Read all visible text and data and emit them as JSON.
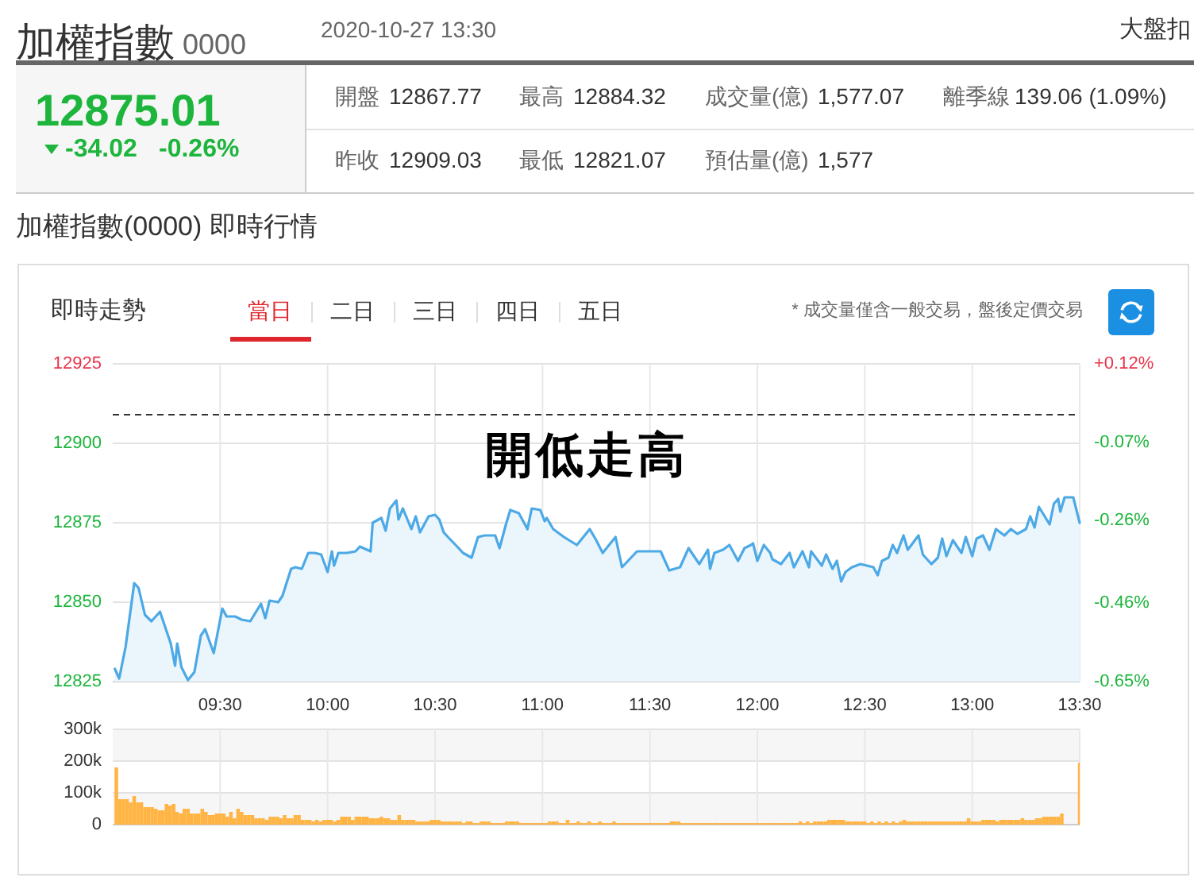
{
  "chart_data": [
    {
      "type": "other",
      "title": "加權指數",
      "subtitle": "0000",
      "annotations": [
        "2020-10-27 13:30",
        "大盤扣",
        "12875.01",
        "-34.02",
        "-0.26%",
        "開盤",
        "12867.77",
        "最高",
        "12884.32",
        "成交量(億)",
        "1,577.07",
        "離季線",
        "139.06 (1.09%)",
        "昨收",
        "12909.03",
        "最低",
        "12821.07",
        "預估量(億)",
        "1,577",
        "加權指數(0000) 即時行情",
        "即時走勢",
        "當日",
        "二日",
        "三日",
        "四日",
        "五日",
        "* 成交量僅含一般交易，盤後定價交易"
      ]
    },
    {
      "type": "area",
      "color": "#4ca9e6",
      "grid": true,
      "x": [
        9.01,
        9.03,
        9.06,
        9.1,
        9.12,
        9.15,
        9.18,
        9.22,
        9.27,
        9.29,
        9.3,
        9.32,
        9.35,
        9.38,
        9.41,
        9.43,
        9.47,
        9.51,
        9.53,
        9.57,
        9.6,
        9.64,
        9.69,
        9.71,
        9.73,
        9.77,
        9.79,
        9.83,
        9.85,
        9.88,
        9.91,
        9.94,
        9.97,
        10,
        10.02,
        10.03,
        10.05,
        10.09,
        10.13,
        10.15,
        10.2,
        10.21,
        10.25,
        10.27,
        10.29,
        10.32,
        10.33,
        10.35,
        10.39,
        10.41,
        10.43,
        10.47,
        10.5,
        10.52,
        10.54,
        10.56,
        10.61,
        10.63,
        10.67,
        10.7,
        10.73,
        10.78,
        10.8,
        10.83,
        10.85,
        10.89,
        10.93,
        10.95,
        10.99,
        11.01,
        11.02,
        11.05,
        11.1,
        11.16,
        11.22,
        11.25,
        11.28,
        11.34,
        11.37,
        11.44,
        11.49,
        11.55,
        11.59,
        11.64,
        11.68,
        11.73,
        11.77,
        11.78,
        11.8,
        11.84,
        11.87,
        11.91,
        11.94,
        11.97,
        11.98,
        12,
        12.03,
        12.06,
        12.07,
        12.11,
        12.15,
        12.17,
        12.21,
        12.24,
        12.25,
        12.3,
        12.32,
        12.35,
        12.37,
        12.39,
        12.41,
        12.44,
        12.48,
        12.54,
        12.56,
        12.58,
        12.61,
        12.63,
        12.65,
        12.68,
        12.7,
        12.75,
        12.77,
        12.81,
        12.84,
        12.86,
        12.88,
        12.91,
        12.95,
        12.97,
        13,
        13.02,
        13.05,
        13.08,
        13.11,
        13.15,
        13.18,
        13.21,
        13.25,
        13.27,
        13.29,
        13.31,
        13.36,
        13.38,
        13.4,
        13.41,
        13.43,
        13.47,
        13.5
      ],
      "values": [
        12829,
        12826,
        12836,
        12856,
        12854.5,
        12846,
        12844,
        12847,
        12837,
        12830,
        12837,
        12829.5,
        12825.5,
        12828,
        12839.5,
        12841.5,
        12834,
        12848,
        12845.5,
        12845.5,
        12844.5,
        12844,
        12849.5,
        12845,
        12850.5,
        12850,
        12852,
        12860.5,
        12861,
        12860.5,
        12865.5,
        12865.5,
        12865,
        12859.5,
        12866,
        12861.5,
        12865.5,
        12865.5,
        12866,
        12867.5,
        12866,
        12875,
        12876.5,
        12872.5,
        12879.5,
        12882,
        12876,
        12879.5,
        12873,
        12877,
        12872,
        12877,
        12877.5,
        12876,
        12872,
        12870.5,
        12867,
        12865.5,
        12864,
        12870.5,
        12871,
        12871,
        12867,
        12874.5,
        12879,
        12878,
        12873,
        12879.5,
        12879,
        12875.5,
        12876.5,
        12873,
        12870.5,
        12868,
        12873,
        12869.5,
        12865.5,
        12870.5,
        12861,
        12866,
        12866,
        12866,
        12860,
        12861,
        12867,
        12862,
        12866.5,
        12860.5,
        12865.5,
        12866.5,
        12868,
        12863,
        12867,
        12868,
        12868.5,
        12863,
        12868,
        12865.5,
        12863.5,
        12862,
        12865.5,
        12861,
        12866,
        12861,
        12866,
        12861.5,
        12865,
        12860.5,
        12863,
        12856.5,
        12859.5,
        12861,
        12862,
        12861,
        12858.5,
        12863,
        12864,
        12868,
        12865.5,
        12871,
        12866.5,
        12871,
        12865,
        12862,
        12864,
        12870,
        12864.5,
        12869.5,
        12865.5,
        12870.5,
        12864.5,
        12870,
        12871,
        12866.5,
        12873,
        12871,
        12873,
        12871.5,
        12873,
        12877,
        12873.5,
        12880,
        12874.5,
        12881,
        12882.5,
        12878.5,
        12883,
        12883,
        12875
      ],
      "xlim": [
        9,
        13.5
      ],
      "xticks": [
        {
          "value": 9.5,
          "label": "09:30"
        },
        {
          "value": 10,
          "label": "10:00"
        },
        {
          "value": 10.5,
          "label": "10:30"
        },
        {
          "value": 11,
          "label": "11:00"
        },
        {
          "value": 11.5,
          "label": "11:30"
        },
        {
          "value": 12,
          "label": "12:00"
        },
        {
          "value": 12.5,
          "label": "12:30"
        },
        {
          "value": 13,
          "label": "13:00"
        },
        {
          "value": 13.5,
          "label": "13:30"
        }
      ],
      "ylim": [
        12825,
        12925
      ],
      "yticks": [
        12825,
        12850,
        12875,
        12900,
        12925
      ],
      "y2lim": [
        -0.65,
        0.12
      ],
      "y2ticks": [
        {
          "value": -0.65,
          "label": "-0.65%"
        },
        {
          "value": -0.46,
          "label": "-0.46%"
        },
        {
          "value": -0.26,
          "label": "-0.26%"
        },
        {
          "value": -0.07,
          "label": "-0.07%"
        },
        {
          "value": 0.12,
          "label": "+0.12%"
        }
      ],
      "ref_lines": [
        {
          "axis": "y",
          "value": 12909.03,
          "color": "#333333",
          "line_style": "dashed"
        }
      ],
      "annotations": [
        "開低走高"
      ]
    },
    {
      "type": "bar",
      "color": "#ffb443",
      "grid": true,
      "tick_labels": "y",
      "x": [
        9.0167,
        9.0333,
        9.05,
        9.0667,
        9.0833,
        9.1,
        9.1167,
        9.1333,
        9.15,
        9.1667,
        9.1833,
        9.2,
        9.2167,
        9.2333,
        9.25,
        9.2667,
        9.2833,
        9.3,
        9.3167,
        9.3333,
        9.35,
        9.3667,
        9.3833,
        9.4,
        9.4167,
        9.4333,
        9.45,
        9.4667,
        9.4833,
        9.5,
        9.5167,
        9.5333,
        9.55,
        9.5667,
        9.5833,
        9.6,
        9.6167,
        9.6333,
        9.65,
        9.6667,
        9.6833,
        9.7,
        9.7167,
        9.7333,
        9.75,
        9.7667,
        9.7833,
        9.8,
        9.8167,
        9.8333,
        9.85,
        9.8667,
        9.8833,
        9.9,
        9.9167,
        9.9333,
        9.95,
        9.9667,
        9.9833,
        10,
        10.0167,
        10.0333,
        10.05,
        10.0667,
        10.0833,
        10.1,
        10.1167,
        10.1333,
        10.15,
        10.1667,
        10.1833,
        10.2,
        10.2167,
        10.2333,
        10.25,
        10.2667,
        10.2833,
        10.3,
        10.3167,
        10.3333,
        10.35,
        10.3667,
        10.3833,
        10.4,
        10.4167,
        10.4333,
        10.45,
        10.4667,
        10.4833,
        10.5,
        10.5167,
        10.5333,
        10.55,
        10.5667,
        10.5833,
        10.6,
        10.6167,
        10.6333,
        10.65,
        10.6667,
        10.6833,
        10.7,
        10.7167,
        10.7333,
        10.75,
        10.7667,
        10.7833,
        10.8,
        10.8167,
        10.8333,
        10.85,
        10.8667,
        10.8833,
        10.9,
        10.9167,
        10.9333,
        10.95,
        10.9667,
        10.9833,
        11,
        11.0167,
        11.0333,
        11.05,
        11.0667,
        11.0833,
        11.1,
        11.1167,
        11.1333,
        11.15,
        11.1667,
        11.1833,
        11.2,
        11.2167,
        11.2333,
        11.25,
        11.2667,
        11.2833,
        11.3,
        11.3167,
        11.3333,
        11.35,
        11.3667,
        11.3833,
        11.4,
        11.4167,
        11.4333,
        11.45,
        11.4667,
        11.4833,
        11.5,
        11.5167,
        11.5333,
        11.55,
        11.5667,
        11.5833,
        11.6,
        11.6167,
        11.6333,
        11.65,
        11.6667,
        11.6833,
        11.7,
        11.7167,
        11.7333,
        11.75,
        11.7667,
        11.7833,
        11.8,
        11.8167,
        11.8333,
        11.85,
        11.8667,
        11.8833,
        11.9,
        11.9167,
        11.9333,
        11.95,
        11.9667,
        11.9833,
        12,
        12.0167,
        12.0333,
        12.05,
        12.0667,
        12.0833,
        12.1,
        12.1167,
        12.1333,
        12.15,
        12.1667,
        12.1833,
        12.2,
        12.2167,
        12.2333,
        12.25,
        12.2667,
        12.2833,
        12.3,
        12.3167,
        12.3333,
        12.35,
        12.3667,
        12.3833,
        12.4,
        12.4167,
        12.4333,
        12.45,
        12.4667,
        12.4833,
        12.5,
        12.5167,
        12.5333,
        12.55,
        12.5667,
        12.5833,
        12.6,
        12.6167,
        12.6333,
        12.65,
        12.6667,
        12.6833,
        12.7,
        12.7167,
        12.7333,
        12.75,
        12.7667,
        12.7833,
        12.8,
        12.8167,
        12.8333,
        12.85,
        12.8667,
        12.8833,
        12.9,
        12.9167,
        12.9333,
        12.95,
        12.9667,
        12.9833,
        13,
        13.0167,
        13.0333,
        13.05,
        13.0667,
        13.0833,
        13.1,
        13.1167,
        13.1333,
        13.15,
        13.1667,
        13.1833,
        13.2,
        13.2167,
        13.2333,
        13.25,
        13.2667,
        13.2833,
        13.3,
        13.3167,
        13.3333,
        13.35,
        13.3667,
        13.3833,
        13.4,
        13.4167,
        13.5
      ],
      "values": [
        180000,
        80000,
        80000,
        80000,
        70000,
        90000,
        70000,
        70000,
        55000,
        55000,
        55000,
        50000,
        45000,
        45000,
        65000,
        60000,
        65000,
        40000,
        35000,
        50000,
        50000,
        35000,
        35000,
        35000,
        50000,
        40000,
        30000,
        30000,
        35000,
        35000,
        35000,
        25000,
        40000,
        20000,
        50000,
        40000,
        30000,
        30000,
        30000,
        20000,
        20000,
        20000,
        15000,
        25000,
        25000,
        25000,
        20000,
        30000,
        20000,
        20000,
        30000,
        30000,
        15000,
        15000,
        15000,
        10000,
        15000,
        10000,
        15000,
        15000,
        15000,
        10000,
        15000,
        25000,
        25000,
        25000,
        15000,
        25000,
        25000,
        25000,
        25000,
        20000,
        20000,
        20000,
        25000,
        20000,
        20000,
        15000,
        15000,
        30000,
        15000,
        15000,
        15000,
        15000,
        10000,
        10000,
        10000,
        10000,
        15000,
        15000,
        15000,
        10000,
        10000,
        10000,
        10000,
        10000,
        10000,
        5000,
        10000,
        10000,
        5000,
        5000,
        10000,
        10000,
        10000,
        5000,
        5000,
        5000,
        5000,
        10000,
        10000,
        10000,
        10000,
        5000,
        5000,
        5000,
        5000,
        5000,
        5000,
        5000,
        5000,
        10000,
        10000,
        10000,
        5000,
        5000,
        15000,
        5000,
        5000,
        10000,
        5000,
        5000,
        10000,
        5000,
        5000,
        10000,
        5000,
        5000,
        5000,
        10000,
        5000,
        5000,
        5000,
        5000,
        5000,
        5000,
        5000,
        5000,
        5000,
        5000,
        5000,
        5000,
        5000,
        5000,
        5000,
        10000,
        10000,
        10000,
        5000,
        5000,
        5000,
        5000,
        5000,
        5000,
        5000,
        5000,
        5000,
        5000,
        5000,
        5000,
        5000,
        5000,
        5000,
        5000,
        5000,
        5000,
        5000,
        5000,
        5000,
        5000,
        5000,
        5000,
        5000,
        5000,
        5000,
        5000,
        5000,
        5000,
        5000,
        5000,
        5000,
        10000,
        5000,
        10000,
        5000,
        10000,
        10000,
        10000,
        10000,
        15000,
        15000,
        15000,
        15000,
        15000,
        10000,
        10000,
        10000,
        10000,
        10000,
        10000,
        5000,
        10000,
        5000,
        10000,
        5000,
        10000,
        5000,
        10000,
        5000,
        10000,
        15000,
        10000,
        10000,
        10000,
        10000,
        10000,
        10000,
        10000,
        10000,
        10000,
        10000,
        10000,
        10000,
        10000,
        10000,
        10000,
        10000,
        10000,
        20000,
        10000,
        10000,
        10000,
        15000,
        15000,
        15000,
        15000,
        10000,
        15000,
        15000,
        15000,
        15000,
        15000,
        15000,
        20000,
        15000,
        15000,
        15000,
        20000,
        20000,
        25000,
        25000,
        25000,
        25000,
        25000,
        35000,
        195000
      ],
      "xlim": [
        9,
        13.5
      ],
      "xticks": [
        {
          "value": 9.5,
          "label": null
        },
        {
          "value": 10,
          "label": null
        },
        {
          "value": 10.5,
          "label": null
        },
        {
          "value": 11,
          "label": null
        },
        {
          "value": 11.5,
          "label": null
        },
        {
          "value": 12,
          "label": null
        },
        {
          "value": 12.5,
          "label": null
        },
        {
          "value": 13,
          "label": null
        },
        {
          "value": 13.5,
          "label": null
        }
      ],
      "ylim": [
        0,
        300000
      ],
      "yticks": [
        0,
        {
          "value": 100000,
          "label": "100k"
        },
        {
          "value": 200000,
          "label": "200k"
        },
        {
          "value": 300000,
          "label": "300k"
        }
      ],
      "bands": [
        {
          "axis": "y",
          "from": 0,
          "to": 100000,
          "color": "#f6f6f6"
        },
        {
          "axis": "y",
          "from": 200000,
          "to": 300000,
          "color": "#f6f6f6"
        }
      ]
    }
  ]
}
